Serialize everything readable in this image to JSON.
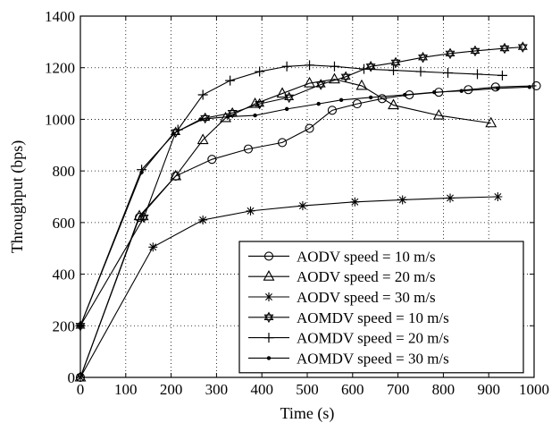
{
  "chart_data": {
    "type": "line",
    "xlabel": "Time (s)",
    "ylabel": "Throughput (bps)",
    "xlim": [
      0,
      1000
    ],
    "ylim": [
      0,
      1400
    ],
    "xticks": [
      0,
      100,
      200,
      300,
      400,
      500,
      600,
      700,
      800,
      900,
      1000
    ],
    "yticks": [
      0,
      200,
      400,
      600,
      800,
      1000,
      1200,
      1400
    ],
    "grid": true,
    "legend_position": "bottom-right",
    "series": [
      {
        "name": "AODV speed = 10 m/s",
        "marker": "circle",
        "x": [
          0,
          130,
          210,
          290,
          370,
          445,
          505,
          555,
          610,
          665,
          725,
          790,
          855,
          915,
          1005
        ],
        "y": [
          0,
          620,
          780,
          845,
          885,
          910,
          965,
          1035,
          1060,
          1080,
          1095,
          1105,
          1115,
          1125,
          1130
        ]
      },
      {
        "name": "AODV speed = 20 m/s",
        "marker": "triangle",
        "x": [
          0,
          130,
          210,
          270,
          320,
          385,
          445,
          505,
          560,
          620,
          690,
          790,
          905
        ],
        "y": [
          0,
          625,
          780,
          920,
          1005,
          1060,
          1100,
          1140,
          1155,
          1130,
          1055,
          1015,
          985
        ]
      },
      {
        "name": "AODV speed = 30 m/s",
        "marker": "star",
        "x": [
          0,
          160,
          270,
          375,
          490,
          605,
          710,
          815,
          920
        ],
        "y": [
          0,
          505,
          610,
          645,
          665,
          680,
          688,
          695,
          700
        ]
      },
      {
        "name": "AOMDV speed = 10 m/s",
        "marker": "hexagram",
        "x": [
          0,
          140,
          210,
          275,
          335,
          395,
          460,
          530,
          585,
          640,
          695,
          755,
          815,
          870,
          935,
          975
        ],
        "y": [
          200,
          620,
          950,
          1005,
          1025,
          1060,
          1085,
          1135,
          1165,
          1205,
          1220,
          1240,
          1255,
          1265,
          1275,
          1280
        ]
      },
      {
        "name": "AOMDV speed = 20 m/s",
        "marker": "plus",
        "x": [
          0,
          135,
          215,
          270,
          330,
          395,
          455,
          505,
          560,
          625,
          690,
          750,
          810,
          875,
          930
        ],
        "y": [
          200,
          805,
          960,
          1095,
          1150,
          1185,
          1205,
          1210,
          1205,
          1195,
          1190,
          1185,
          1180,
          1175,
          1170
        ]
      },
      {
        "name": "AOMDV speed = 30 m/s",
        "marker": "dot",
        "x": [
          0,
          135,
          205,
          265,
          325,
          385,
          455,
          525,
          575,
          640,
          715,
          780,
          840,
          920,
          990
        ],
        "y": [
          200,
          795,
          945,
          1000,
          1010,
          1015,
          1040,
          1060,
          1075,
          1085,
          1095,
          1105,
          1110,
          1120,
          1125
        ]
      }
    ]
  }
}
